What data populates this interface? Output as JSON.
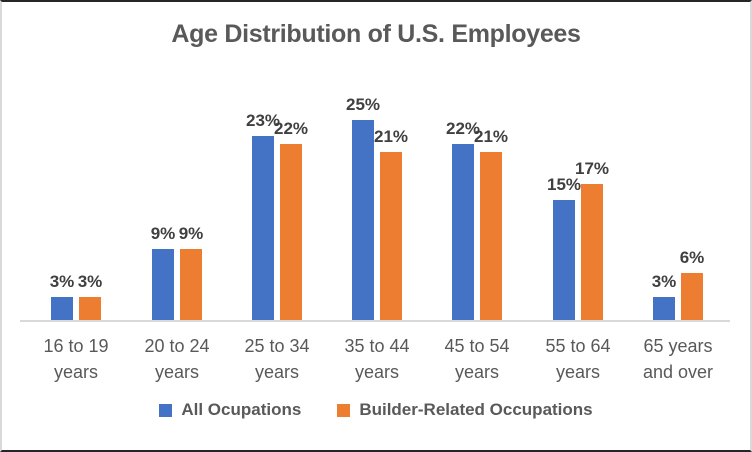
{
  "window": {
    "background": "#ffffff",
    "border_dark": "#262626",
    "border_light": "#d9d9d9"
  },
  "chart_data": {
    "type": "bar",
    "title": "Age Distribution of U.S. Employees",
    "categories": [
      "16 to 19\nyears",
      "20 to 24\nyears",
      "25 to 34\nyears",
      "35 to 44\nyears",
      "45 to 54\nyears",
      "55 to 64\nyears",
      "65 years\nand over"
    ],
    "series": [
      {
        "name": "All Ocupations",
        "color": "#4472C4",
        "values": [
          3,
          9,
          23,
          25,
          22,
          15,
          3
        ],
        "point_labels": [
          "3%",
          "9%",
          "23%",
          "25%",
          "22%",
          "15%",
          "3%"
        ]
      },
      {
        "name": "Builder-Related Occupations",
        "color": "#ED7D31",
        "values": [
          3,
          9,
          22,
          21,
          21,
          17,
          6
        ],
        "point_labels": [
          "3%",
          "9%",
          "22%",
          "21%",
          "21%",
          "17%",
          "6%"
        ]
      }
    ],
    "ylim": [
      0,
      31
    ],
    "grid": false,
    "legend_position": "bottom",
    "data_labels": "outside-end",
    "axis_line_color": "#d9d9d9",
    "data_label_color": "#404040",
    "text_color": "#595959",
    "title_color": "#595959"
  }
}
